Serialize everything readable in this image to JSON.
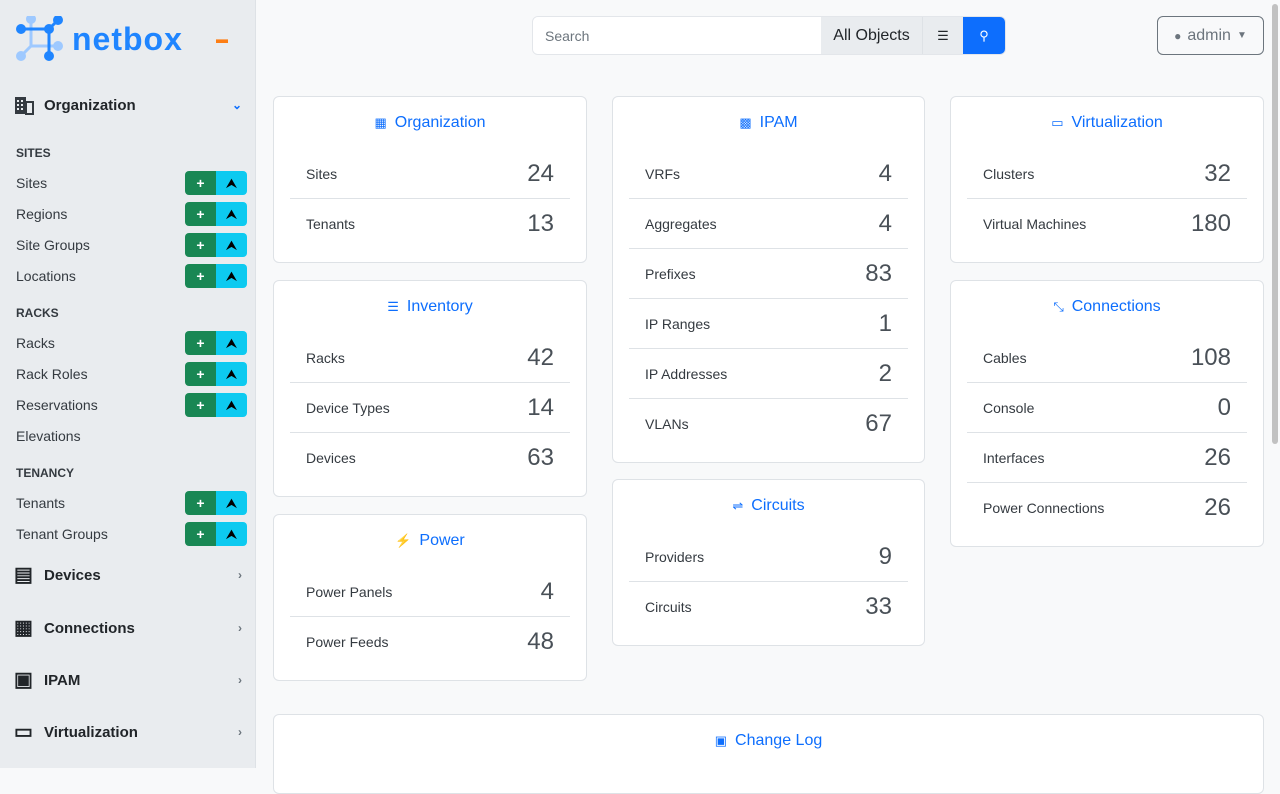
{
  "brand": "netbox",
  "sidebar": {
    "organization": "Organization",
    "sections": [
      {
        "title": "SITES",
        "items": [
          {
            "label": "Sites",
            "buttons": true
          },
          {
            "label": "Regions",
            "buttons": true
          },
          {
            "label": "Site Groups",
            "buttons": true
          },
          {
            "label": "Locations",
            "buttons": true
          }
        ]
      },
      {
        "title": "RACKS",
        "items": [
          {
            "label": "Racks",
            "buttons": true
          },
          {
            "label": "Rack Roles",
            "buttons": true
          },
          {
            "label": "Reservations",
            "buttons": true
          },
          {
            "label": "Elevations",
            "buttons": false
          }
        ]
      },
      {
        "title": "TENANCY",
        "items": [
          {
            "label": "Tenants",
            "buttons": true
          },
          {
            "label": "Tenant Groups",
            "buttons": true
          }
        ]
      }
    ],
    "menus": [
      "Devices",
      "Connections",
      "IPAM",
      "Virtualization"
    ]
  },
  "search": {
    "placeholder": "Search",
    "scope": "All Objects"
  },
  "user": {
    "name": "admin"
  },
  "cards": {
    "organization": {
      "title": "Organization",
      "rows": [
        {
          "label": "Sites",
          "value": "24"
        },
        {
          "label": "Tenants",
          "value": "13"
        }
      ]
    },
    "inventory": {
      "title": "Inventory",
      "rows": [
        {
          "label": "Racks",
          "value": "42"
        },
        {
          "label": "Device Types",
          "value": "14"
        },
        {
          "label": "Devices",
          "value": "63"
        }
      ]
    },
    "power": {
      "title": "Power",
      "rows": [
        {
          "label": "Power Panels",
          "value": "4"
        },
        {
          "label": "Power Feeds",
          "value": "48"
        }
      ]
    },
    "ipam": {
      "title": "IPAM",
      "rows": [
        {
          "label": "VRFs",
          "value": "4"
        },
        {
          "label": "Aggregates",
          "value": "4"
        },
        {
          "label": "Prefixes",
          "value": "83"
        },
        {
          "label": "IP Ranges",
          "value": "1"
        },
        {
          "label": "IP Addresses",
          "value": "2"
        },
        {
          "label": "VLANs",
          "value": "67"
        }
      ]
    },
    "circuits": {
      "title": "Circuits",
      "rows": [
        {
          "label": "Providers",
          "value": "9"
        },
        {
          "label": "Circuits",
          "value": "33"
        }
      ]
    },
    "virtualization": {
      "title": "Virtualization",
      "rows": [
        {
          "label": "Clusters",
          "value": "32"
        },
        {
          "label": "Virtual Machines",
          "value": "180"
        }
      ]
    },
    "connections": {
      "title": "Connections",
      "rows": [
        {
          "label": "Cables",
          "value": "108"
        },
        {
          "label": "Console",
          "value": "0"
        },
        {
          "label": "Interfaces",
          "value": "26"
        },
        {
          "label": "Power Connections",
          "value": "26"
        }
      ]
    },
    "changelog": {
      "title": "Change Log"
    }
  },
  "colors": {
    "accent": "#0d6efd",
    "add": "#198754",
    "import": "#0dcaf0",
    "brand": "#1f85ff"
  }
}
